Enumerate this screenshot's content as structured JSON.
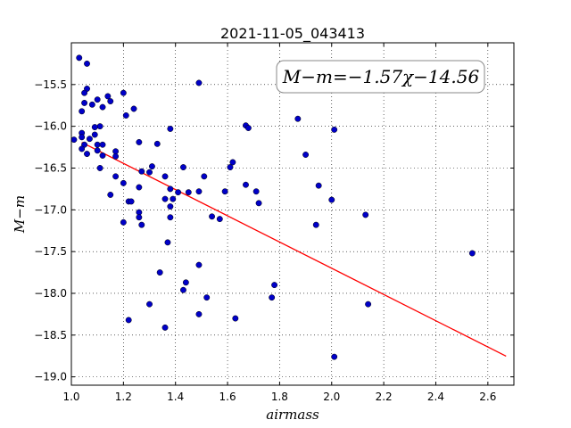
{
  "chart_data": {
    "type": "scatter",
    "title": "2021-11-05_043413",
    "xlabel": "airmass",
    "ylabel": "M−m",
    "xlim": [
      1.0,
      2.7
    ],
    "ylim": [
      -19.1,
      -15.0
    ],
    "x_ticks": [
      1.0,
      1.2,
      1.4,
      1.6,
      1.8,
      2.0,
      2.2,
      2.4,
      2.6
    ],
    "x_tick_labels": [
      "1.0",
      "1.2",
      "1.4",
      "1.6",
      "1.8",
      "2.0",
      "2.2",
      "2.4",
      "2.6"
    ],
    "y_ticks": [
      -15.5,
      -16.0,
      -16.5,
      -17.0,
      -17.5,
      -18.0,
      -18.5,
      -19.0
    ],
    "y_tick_labels": [
      "−15.5",
      "−16.0",
      "−16.5",
      "−17.0",
      "−17.5",
      "−18.0",
      "−18.5",
      "−19.0"
    ],
    "grid": true,
    "annotation": "M−m=−1.57χ−14.56",
    "fit": {
      "slope": -1.57,
      "intercept": -14.56,
      "x_range": [
        1.04,
        2.67
      ],
      "color": "#ff0000"
    },
    "point_color": "#0000c8",
    "series": [
      {
        "points": [
          [
            1.03,
            -15.18
          ],
          [
            1.06,
            -15.25
          ],
          [
            1.06,
            -15.55
          ],
          [
            1.05,
            -15.6
          ],
          [
            1.04,
            -15.82
          ],
          [
            1.05,
            -15.72
          ],
          [
            1.08,
            -15.74
          ],
          [
            1.1,
            -15.68
          ],
          [
            1.12,
            -15.77
          ],
          [
            1.14,
            -15.64
          ],
          [
            1.15,
            -15.7
          ],
          [
            1.2,
            -15.6
          ],
          [
            1.24,
            -15.79
          ],
          [
            1.21,
            -15.87
          ],
          [
            1.11,
            -16.0
          ],
          [
            1.09,
            -16.01
          ],
          [
            1.09,
            -16.1
          ],
          [
            1.04,
            -16.08
          ],
          [
            1.04,
            -16.13
          ],
          [
            1.07,
            -16.15
          ],
          [
            1.01,
            -16.16
          ],
          [
            1.05,
            -16.22
          ],
          [
            1.04,
            -16.27
          ],
          [
            1.06,
            -16.33
          ],
          [
            1.1,
            -16.22
          ],
          [
            1.1,
            -16.29
          ],
          [
            1.12,
            -16.22
          ],
          [
            1.12,
            -16.35
          ],
          [
            1.11,
            -16.5
          ],
          [
            1.17,
            -16.3
          ],
          [
            1.17,
            -16.36
          ],
          [
            1.17,
            -16.6
          ],
          [
            1.15,
            -16.82
          ],
          [
            1.2,
            -16.68
          ],
          [
            1.2,
            -17.15
          ],
          [
            1.22,
            -16.9
          ],
          [
            1.23,
            -16.9
          ],
          [
            1.26,
            -16.19
          ],
          [
            1.27,
            -16.54
          ],
          [
            1.26,
            -16.73
          ],
          [
            1.26,
            -17.03
          ],
          [
            1.26,
            -17.09
          ],
          [
            1.27,
            -17.18
          ],
          [
            1.3,
            -16.55
          ],
          [
            1.31,
            -16.48
          ],
          [
            1.33,
            -16.21
          ],
          [
            1.38,
            -16.03
          ],
          [
            1.36,
            -16.6
          ],
          [
            1.38,
            -16.75
          ],
          [
            1.36,
            -16.87
          ],
          [
            1.39,
            -16.87
          ],
          [
            1.38,
            -16.96
          ],
          [
            1.38,
            -17.09
          ],
          [
            1.37,
            -17.39
          ],
          [
            1.41,
            -16.79
          ],
          [
            1.43,
            -16.49
          ],
          [
            1.45,
            -16.79
          ],
          [
            1.49,
            -16.78
          ],
          [
            1.49,
            -15.48
          ],
          [
            1.51,
            -16.6
          ],
          [
            1.54,
            -17.08
          ],
          [
            1.57,
            -17.11
          ],
          [
            1.59,
            -16.78
          ],
          [
            1.61,
            -16.49
          ],
          [
            1.62,
            -16.43
          ],
          [
            1.67,
            -16.7
          ],
          [
            1.67,
            -15.99
          ],
          [
            1.68,
            -16.02
          ],
          [
            1.71,
            -16.78
          ],
          [
            1.72,
            -16.92
          ],
          [
            1.87,
            -15.91
          ],
          [
            1.9,
            -16.34
          ],
          [
            1.95,
            -16.71
          ],
          [
            2.0,
            -16.88
          ],
          [
            2.01,
            -16.04
          ],
          [
            1.94,
            -17.18
          ],
          [
            2.13,
            -17.06
          ],
          [
            1.34,
            -17.75
          ],
          [
            1.3,
            -18.13
          ],
          [
            1.36,
            -18.41
          ],
          [
            1.22,
            -18.32
          ],
          [
            1.43,
            -17.96
          ],
          [
            1.44,
            -17.87
          ],
          [
            1.49,
            -17.66
          ],
          [
            1.49,
            -18.25
          ],
          [
            1.52,
            -18.05
          ],
          [
            1.63,
            -18.3
          ],
          [
            1.78,
            -17.9
          ],
          [
            1.77,
            -18.05
          ],
          [
            2.14,
            -18.13
          ],
          [
            2.01,
            -18.76
          ],
          [
            2.54,
            -17.52
          ]
        ]
      }
    ]
  }
}
